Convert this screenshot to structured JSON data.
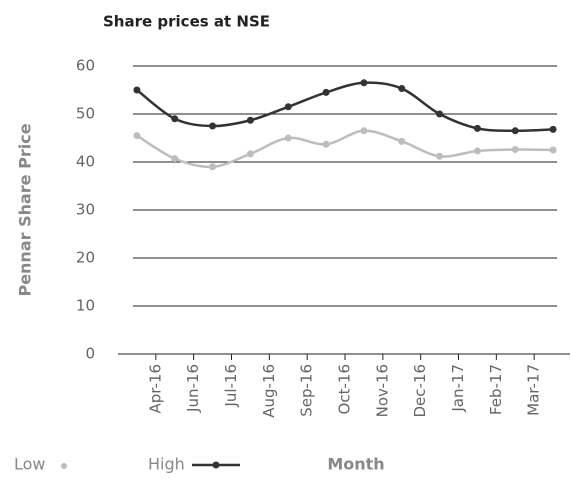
{
  "chart_data": {
    "type": "line",
    "title": "Share prices at NSE",
    "y_label": "Pennar Share Price",
    "x_label": "Month",
    "categories": [
      "Apr-16",
      "Jun-16",
      "Jul-16",
      "Aug-16",
      "Sep-16",
      "Oct-16",
      "Nov-16",
      "Dec-16",
      "Jan-17",
      "Feb-17",
      "Mar-17",
      null
    ],
    "series": [
      {
        "name": "Low",
        "color": "#bdbdbd",
        "values": [
          45.5,
          40.7,
          39,
          41.7,
          45,
          43.7,
          46.5,
          44.3,
          41.2,
          42.3,
          42.6,
          42.5
        ]
      },
      {
        "name": "High",
        "color": "#333333",
        "values": [
          55,
          49,
          47.5,
          48.7,
          51.5,
          54.5,
          56.5,
          55.3,
          50,
          47,
          46.5,
          46.8
        ]
      }
    ],
    "ylim": [
      0,
      60
    ],
    "yticks": [
      0,
      10,
      20,
      30,
      40,
      50,
      60
    ],
    "grid": true
  }
}
